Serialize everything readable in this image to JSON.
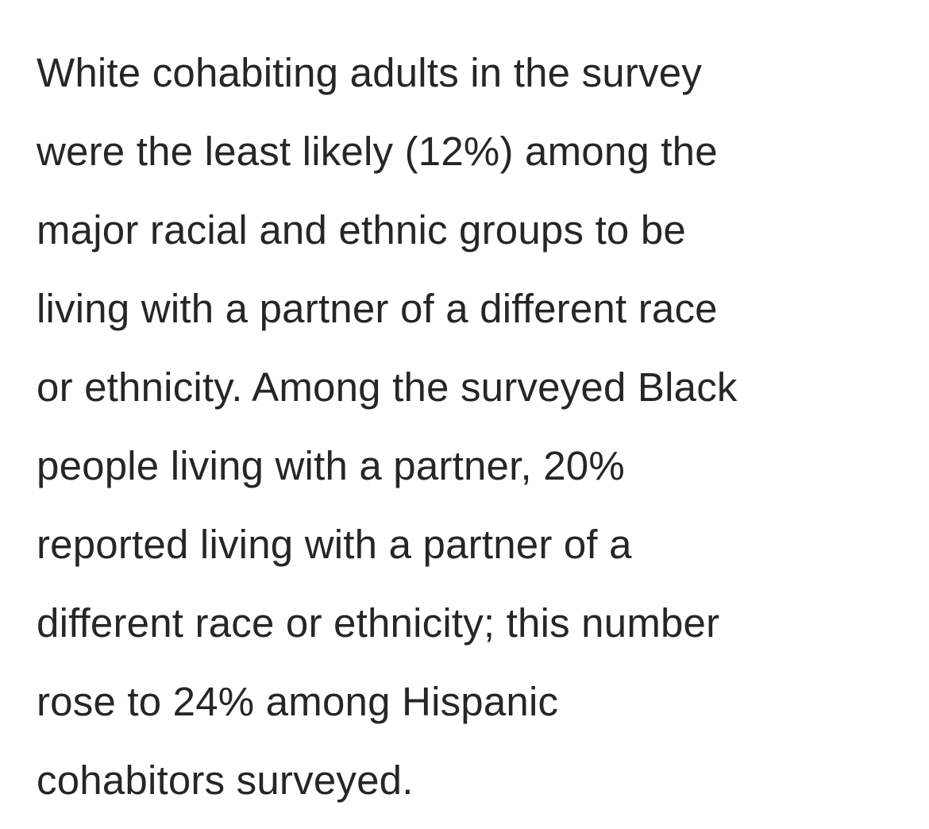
{
  "article": {
    "paragraph_lines": [
      "White cohabiting adults in the survey",
      "were the least likely (12%) among the",
      "major racial and ethnic groups to be",
      "living with a partner of a different race",
      "or ethnicity. Among the surveyed Black",
      "people living with a partner, 20%",
      "reported living with a partner of a",
      "different race or ethnicity; this number",
      "rose to 24% among Hispanic",
      "cohabitors surveyed."
    ]
  }
}
